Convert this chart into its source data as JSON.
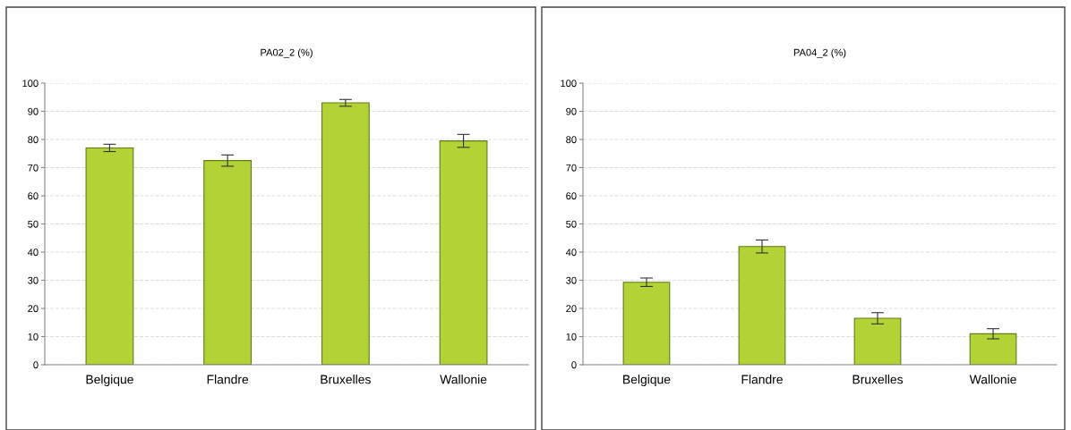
{
  "chart_data": [
    {
      "type": "bar",
      "title": "PA02_2 (%)",
      "categories": [
        "Belgique",
        "Flandre",
        "Bruxelles",
        "Wallonie"
      ],
      "series": [
        {
          "color": "#b2d235",
          "values": [
            77,
            72.5,
            93,
            79.5
          ],
          "errors": [
            1.3,
            2,
            1.2,
            2.3
          ]
        }
      ],
      "ylim": [
        0,
        100
      ],
      "yticks": [
        0,
        10,
        20,
        30,
        40,
        50,
        60,
        70,
        80,
        90,
        100
      ],
      "grid": "y"
    },
    {
      "type": "bar",
      "title": "PA04_2 (%)",
      "categories": [
        "Belgique",
        "Flandre",
        "Bruxelles",
        "Wallonie"
      ],
      "series": [
        {
          "color": "#b2d235",
          "values": [
            29.3,
            42,
            16.5,
            11
          ],
          "errors": [
            1.5,
            2.3,
            2,
            1.8
          ]
        }
      ],
      "ylim": [
        0,
        100
      ],
      "yticks": [
        0,
        10,
        20,
        30,
        40,
        50,
        60,
        70,
        80,
        90,
        100
      ],
      "grid": "y"
    }
  ]
}
